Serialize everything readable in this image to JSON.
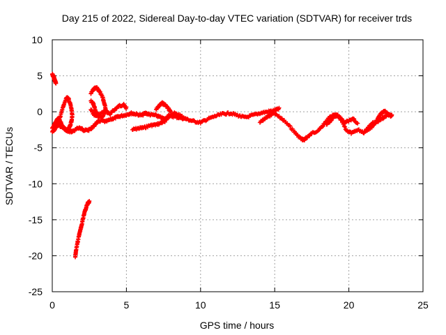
{
  "chart_data": {
    "type": "scatter",
    "title": "Day 215 of 2022, Sidereal Day-to-day VTEC variation (SDTVAR) for receiver trds",
    "xlabel": "GPS time / hours",
    "ylabel": "SDTVAR / TECUs",
    "xlim": [
      0,
      25
    ],
    "ylim": [
      -25,
      10
    ],
    "xticks": [
      0,
      5,
      10,
      15,
      20,
      25
    ],
    "yticks": [
      -25,
      -20,
      -15,
      -10,
      -5,
      0,
      5,
      10
    ],
    "grid": true,
    "marker": "+",
    "series": [
      {
        "name": "SDTVAR",
        "color": "#ff0000",
        "tracks": [
          {
            "x": [
              0.0,
              0.05,
              0.1,
              0.15,
              0.2,
              0.25
            ],
            "y": [
              5.2,
              5.0,
              4.8,
              4.5,
              4.2,
              4.0
            ]
          },
          {
            "x": [
              1.55,
              1.6,
              1.7,
              1.8,
              1.9,
              2.0,
              2.1,
              2.2,
              2.3,
              2.4,
              2.5
            ],
            "y": [
              -20.2,
              -19.3,
              -18.2,
              -17.2,
              -16.4,
              -15.6,
              -14.6,
              -13.8,
              -13.2,
              -12.7,
              -12.5
            ]
          },
          {
            "x": [
              0.0,
              0.15,
              0.3,
              0.5,
              0.7,
              0.9,
              1.0,
              1.1,
              1.2,
              1.3,
              1.35,
              1.3,
              1.2,
              1.1,
              1.0,
              0.9,
              0.8,
              0.7,
              0.6,
              0.5,
              0.4,
              0.3,
              0.2,
              0.1,
              0.0
            ],
            "y": [
              -2.8,
              -2.5,
              -2.0,
              -1.0,
              0.5,
              1.6,
              2.0,
              1.8,
              1.2,
              0.3,
              -0.5,
              -1.3,
              -2.0,
              -2.4,
              -2.6,
              -2.5,
              -2.3,
              -2.0,
              -1.6,
              -1.2,
              -1.0,
              -1.2,
              -1.6,
              -2.0,
              -2.4
            ]
          },
          {
            "x": [
              0.2,
              0.5,
              0.8,
              1.0,
              1.2,
              1.5,
              1.8,
              2.0,
              2.2,
              2.5,
              2.8,
              3.0,
              3.3,
              3.6,
              4.0,
              4.3,
              4.6,
              5.0,
              5.3,
              5.6,
              6.0,
              6.3,
              6.6,
              7.0,
              7.3,
              7.6,
              8.0,
              8.5,
              9.0,
              9.5,
              10.0,
              10.5,
              11.0,
              11.5,
              12.0,
              12.5,
              13.0,
              13.5,
              14.0,
              14.5,
              15.0,
              15.3
            ],
            "y": [
              -1.5,
              -2.0,
              -2.3,
              -2.6,
              -2.8,
              -2.6,
              -2.2,
              -2.4,
              -2.6,
              -2.5,
              -2.0,
              -1.5,
              -1.2,
              -1.4,
              -1.0,
              -0.8,
              -0.6,
              -0.4,
              -0.2,
              -0.3,
              -0.5,
              -0.2,
              -0.4,
              -0.5,
              -0.8,
              -1.0,
              -0.6,
              -0.8,
              -1.0,
              -1.3,
              -1.5,
              -1.0,
              -0.6,
              -0.3,
              -0.2,
              -0.5,
              -0.8,
              -0.5,
              -0.2,
              0.0,
              0.2,
              0.4
            ]
          },
          {
            "x": [
              2.6,
              2.8,
              3.0,
              3.2,
              3.4,
              3.5,
              3.6,
              3.5,
              3.3,
              3.1,
              2.9,
              2.8,
              2.6
            ],
            "y": [
              2.5,
              3.2,
              3.3,
              2.8,
              2.0,
              1.2,
              0.4,
              -0.3,
              -0.8,
              -0.5,
              0.2,
              1.0,
              1.5
            ]
          },
          {
            "x": [
              2.6,
              2.8,
              3.0,
              3.3,
              3.6,
              3.9,
              4.2,
              4.5,
              4.8,
              5.0
            ],
            "y": [
              0.3,
              -0.4,
              -0.6,
              -0.2,
              0.1,
              -0.3,
              0.3,
              0.8,
              1.0,
              0.5
            ]
          },
          {
            "x": [
              5.4,
              5.8,
              6.2,
              6.6,
              7.0,
              7.4,
              7.6,
              7.8,
              8.2,
              8.6,
              9.0
            ],
            "y": [
              -2.5,
              -2.3,
              -2.2,
              -1.9,
              -1.8,
              -1.5,
              -1.3,
              -0.6,
              -0.2,
              -0.5,
              -1.0
            ]
          },
          {
            "x": [
              7.0,
              7.2,
              7.4,
              7.6,
              7.8,
              8.0
            ],
            "y": [
              0.3,
              0.8,
              1.2,
              1.0,
              0.5,
              0.0
            ]
          },
          {
            "x": [
              15.0,
              15.5,
              16.0,
              16.5,
              16.8,
              17.0,
              17.2,
              17.5,
              18.0,
              18.3,
              18.6,
              18.9,
              19.2,
              19.5,
              19.8,
              20.2,
              20.6,
              21.0,
              21.5,
              21.8,
              22.0,
              22.2,
              22.4,
              22.6,
              22.8,
              22.9
            ],
            "y": [
              -0.3,
              -1.0,
              -2.0,
              -3.2,
              -3.8,
              -3.9,
              -3.5,
              -3.0,
              -2.5,
              -1.8,
              -1.0,
              -0.5,
              -0.6,
              -1.2,
              -2.5,
              -3.0,
              -2.5,
              -2.8,
              -2.2,
              -1.5,
              -0.8,
              -0.2,
              0.1,
              -0.3,
              -0.6,
              -0.5
            ]
          },
          {
            "x": [
              14.0,
              14.3,
              14.6,
              14.9
            ],
            "y": [
              -1.5,
              -1.0,
              -0.6,
              -0.2
            ]
          },
          {
            "x": [
              18.5,
              18.8,
              19.0,
              19.2,
              19.5,
              19.7,
              20.0,
              20.3,
              20.6
            ],
            "y": [
              -1.8,
              -1.2,
              -0.6,
              -0.4,
              -1.0,
              -1.6,
              -1.2,
              -1.0,
              -1.6
            ]
          },
          {
            "x": [
              21.0,
              21.3,
              21.6,
              21.9,
              22.2,
              22.5,
              22.8
            ],
            "y": [
              -3.0,
              -2.2,
              -1.6,
              -1.4,
              -1.0,
              -0.6,
              -0.3
            ]
          }
        ]
      }
    ]
  }
}
